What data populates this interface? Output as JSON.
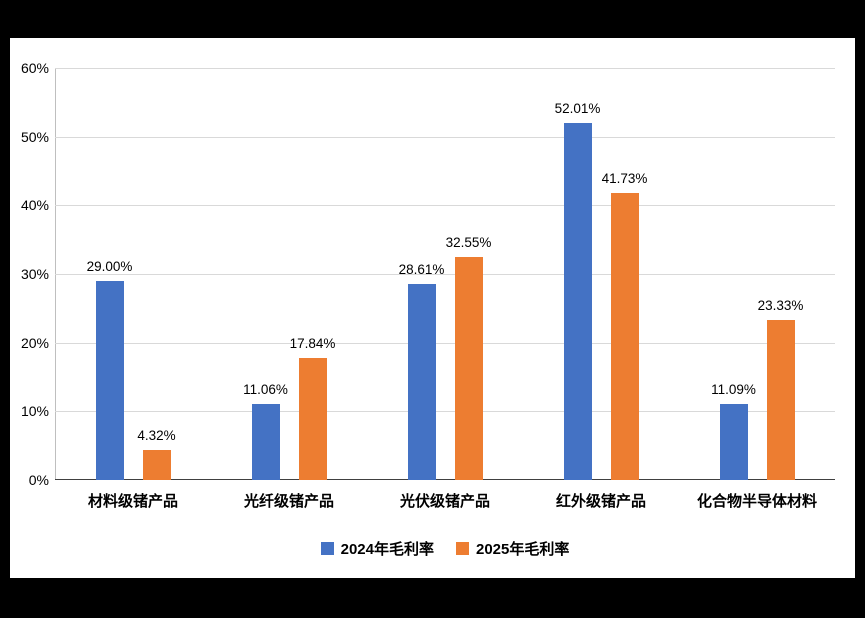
{
  "chart_data": {
    "type": "bar",
    "categories": [
      "材料级锗产品",
      "光纤级锗产品",
      "光伏级锗产品",
      "红外级锗产品",
      "化合物半导体材料"
    ],
    "series": [
      {
        "name": "2024年毛利率",
        "color": "#4472C4",
        "values": [
          29.0,
          11.06,
          28.61,
          52.01,
          11.09
        ],
        "labels": [
          "29.00%",
          "11.06%",
          "28.61%",
          "52.01%",
          "11.09%"
        ]
      },
      {
        "name": "2025年毛利率",
        "color": "#ED7D31",
        "values": [
          4.32,
          17.84,
          32.55,
          41.73,
          23.33
        ],
        "labels": [
          "4.32%",
          "17.84%",
          "32.55%",
          "41.73%",
          "23.33%"
        ]
      }
    ],
    "title": "",
    "xlabel": "",
    "ylabel": "",
    "ylim": [
      0,
      60
    ],
    "ytick_step": 10,
    "ytick_labels": [
      "0%",
      "10%",
      "20%",
      "30%",
      "40%",
      "50%",
      "60%"
    ],
    "grid": true,
    "legend_position": "bottom",
    "background_frame_color": "#000000",
    "plot_background_color": "#FFFFFF"
  }
}
